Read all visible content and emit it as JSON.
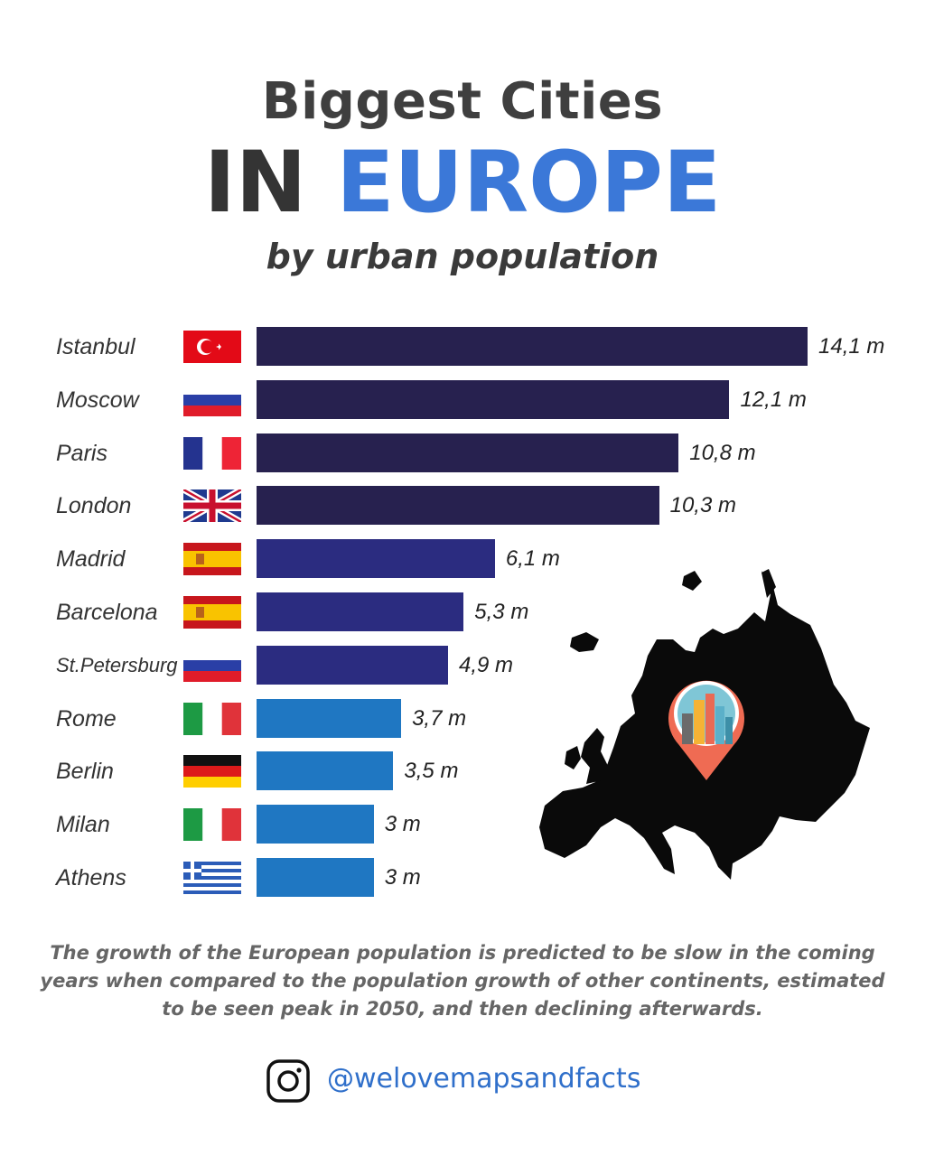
{
  "header": {
    "line1": "Biggest Cities",
    "line2a": "IN",
    "line2b": "EUROPE",
    "subtitle": "by urban population"
  },
  "chart_data": {
    "type": "bar",
    "orientation": "horizontal",
    "categories": [
      "Istanbul",
      "Moscow",
      "Paris",
      "London",
      "Madrid",
      "Barcelona",
      "St.Petersburg",
      "Rome",
      "Berlin",
      "Milan",
      "Athens"
    ],
    "values": [
      14.1,
      12.1,
      10.8,
      10.3,
      6.1,
      5.3,
      4.9,
      3.7,
      3.5,
      3,
      3
    ],
    "labels": [
      "14,1 m",
      "12,1 m",
      "10,8 m",
      "10,3 m",
      "6,1 m",
      "5,3 m",
      "4,9 m",
      "3,7 m",
      "3,5 m",
      "3 m",
      "3 m"
    ],
    "flags": [
      "turkey",
      "russia",
      "france",
      "uk",
      "spain",
      "spain",
      "russia",
      "italy",
      "germany",
      "italy",
      "greece"
    ],
    "colors": {
      "dark": "#27214f",
      "mid": "#2b2c80",
      "light": "#1f77c2"
    },
    "color_groups": [
      "dark",
      "dark",
      "dark",
      "dark",
      "mid",
      "mid",
      "mid",
      "light",
      "light",
      "light",
      "light"
    ],
    "xlim": [
      0,
      14.1
    ]
  },
  "footer": {
    "text": "The growth of the European population is predicted to be slow in the coming years when compared to the population growth of other continents, estimated to be seen peak in 2050, and then declining afterwards."
  },
  "social": {
    "icon": "instagram-icon",
    "handle": "@welovemapsandfacts"
  }
}
